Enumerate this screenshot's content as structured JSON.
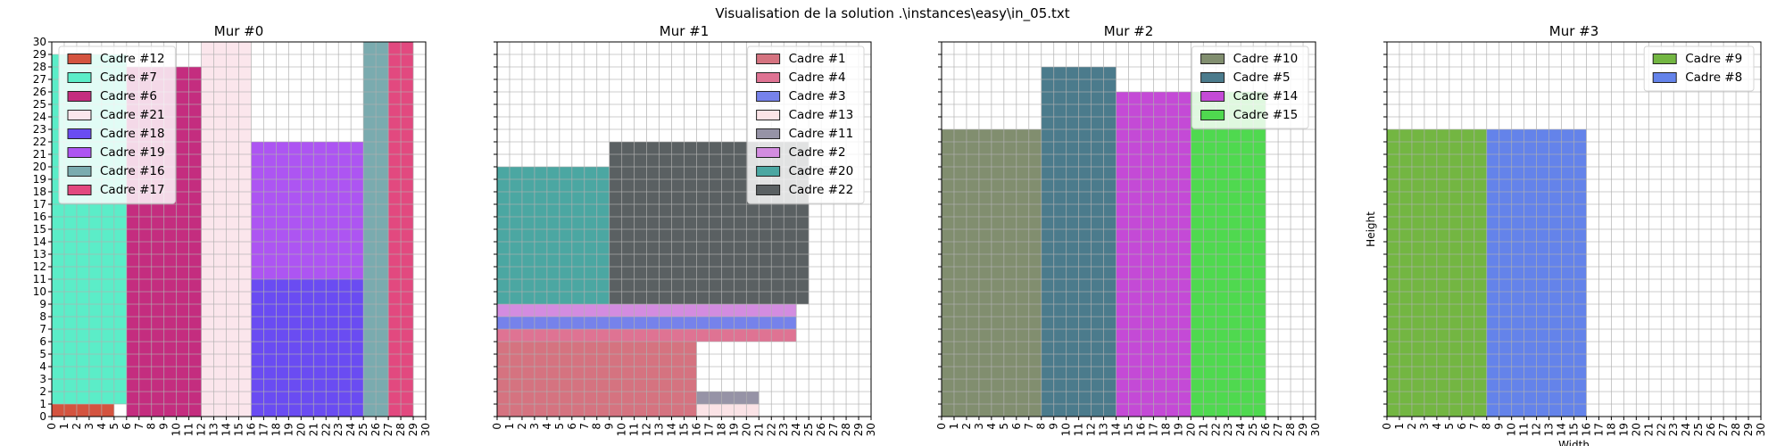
{
  "figure_title": "Visualisation de la solution .\\instances\\easy\\in_05.txt",
  "chart_data": [
    {
      "type": "bar",
      "title": "Mur #0",
      "xlabel": "",
      "ylabel": "",
      "xlim": [
        0,
        30
      ],
      "ylim": [
        0,
        30
      ],
      "grid": true,
      "show_y_tick_labels": true,
      "legend_placement": "top-left",
      "rects": [
        {
          "name": "Cadre #12",
          "x": 0,
          "y": 0,
          "w": 5,
          "h": 1,
          "color": "#d4533f"
        },
        {
          "name": "Cadre #7",
          "x": 0,
          "y": 1,
          "w": 6,
          "h": 28,
          "color": "#5bedc8"
        },
        {
          "name": "Cadre #6",
          "x": 6,
          "y": 0,
          "w": 6,
          "h": 28,
          "color": "#c42d7f"
        },
        {
          "name": "Cadre #21",
          "x": 12,
          "y": 0,
          "w": 4,
          "h": 30,
          "color": "#fbe6ec"
        },
        {
          "name": "Cadre #18",
          "x": 16,
          "y": 0,
          "w": 9,
          "h": 11,
          "color": "#6a4cf2"
        },
        {
          "name": "Cadre #19",
          "x": 16,
          "y": 11,
          "w": 9,
          "h": 11,
          "color": "#ad55f2"
        },
        {
          "name": "Cadre #16",
          "x": 25,
          "y": 0,
          "w": 2,
          "h": 30,
          "color": "#7aabaf"
        },
        {
          "name": "Cadre #17",
          "x": 27,
          "y": 0,
          "w": 2,
          "h": 30,
          "color": "#e2497f"
        }
      ]
    },
    {
      "type": "bar",
      "title": "Mur #1",
      "xlabel": "",
      "ylabel": "",
      "xlim": [
        0,
        30
      ],
      "ylim": [
        0,
        30
      ],
      "grid": true,
      "show_y_tick_labels": false,
      "legend_placement": "top-right",
      "rects": [
        {
          "name": "Cadre #1",
          "x": 0,
          "y": 0,
          "w": 16,
          "h": 6,
          "color": "#d57380"
        },
        {
          "name": "Cadre #4",
          "x": 0,
          "y": 6,
          "w": 24,
          "h": 1,
          "color": "#df7393"
        },
        {
          "name": "Cadre #3",
          "x": 0,
          "y": 7,
          "w": 24,
          "h": 1,
          "color": "#7682eb"
        },
        {
          "name": "Cadre #13",
          "x": 16,
          "y": 0,
          "w": 5,
          "h": 1,
          "color": "#fbe3e6"
        },
        {
          "name": "Cadre #11",
          "x": 16,
          "y": 1,
          "w": 5,
          "h": 1,
          "color": "#9693a6"
        },
        {
          "name": "Cadre #2",
          "x": 0,
          "y": 8,
          "w": 24,
          "h": 1,
          "color": "#d38ce0"
        },
        {
          "name": "Cadre #20",
          "x": 0,
          "y": 9,
          "w": 9,
          "h": 11,
          "color": "#4ba7a2"
        },
        {
          "name": "Cadre #22",
          "x": 9,
          "y": 9,
          "w": 16,
          "h": 13,
          "color": "#5a6062"
        }
      ]
    },
    {
      "type": "bar",
      "title": "Mur #2",
      "xlabel": "",
      "ylabel": "",
      "xlim": [
        0,
        30
      ],
      "ylim": [
        0,
        30
      ],
      "grid": true,
      "show_y_tick_labels": false,
      "legend_placement": "top-right",
      "rects": [
        {
          "name": "Cadre #10",
          "x": 0,
          "y": 0,
          "w": 8,
          "h": 23,
          "color": "#818e6f"
        },
        {
          "name": "Cadre #5",
          "x": 8,
          "y": 0,
          "w": 6,
          "h": 28,
          "color": "#4b7b8c"
        },
        {
          "name": "Cadre #14",
          "x": 14,
          "y": 0,
          "w": 6,
          "h": 26,
          "color": "#c44ad6"
        },
        {
          "name": "Cadre #15",
          "x": 20,
          "y": 0,
          "w": 6,
          "h": 26,
          "color": "#4fd94f"
        }
      ]
    },
    {
      "type": "bar",
      "title": "Mur #3",
      "xlabel": "Width",
      "ylabel": "Height",
      "xlim": [
        0,
        30
      ],
      "ylim": [
        0,
        30
      ],
      "grid": true,
      "show_y_tick_labels": false,
      "legend_placement": "top-right",
      "rects": [
        {
          "name": "Cadre #9",
          "x": 0,
          "y": 0,
          "w": 8,
          "h": 23,
          "color": "#73b642"
        },
        {
          "name": "Cadre #8",
          "x": 8,
          "y": 0,
          "w": 8,
          "h": 23,
          "color": "#6483ea"
        }
      ]
    }
  ]
}
